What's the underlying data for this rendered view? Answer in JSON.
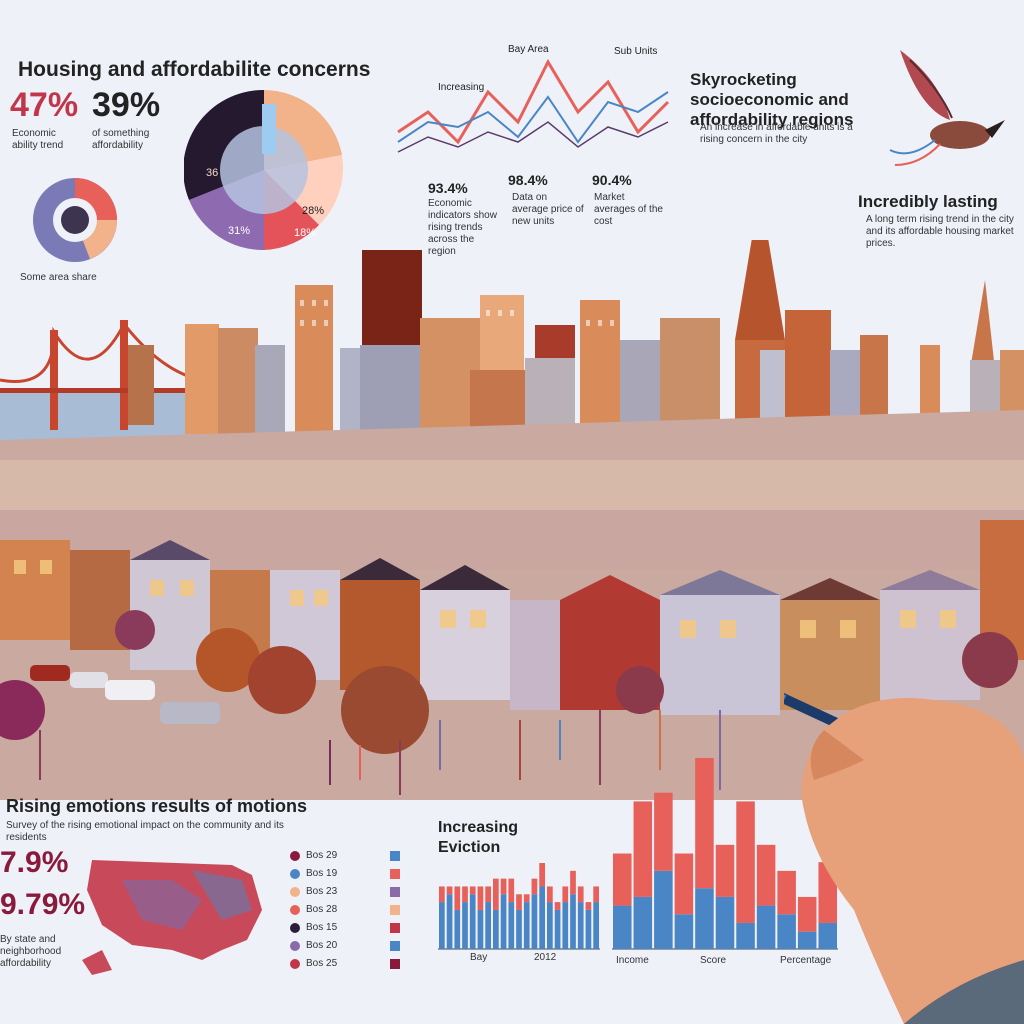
{
  "title": "Housing and affordabilite concerns",
  "stats_left": {
    "pct_a": "47%",
    "pct_b": "39%",
    "pct_a_note": "Economic ability trend",
    "pct_b_note": "of something affordability"
  },
  "donut_note": "Some area share",
  "pie_labels": [
    "36",
    "28%",
    "31%",
    "18%"
  ],
  "line_chart": {
    "title_left": "Increasing",
    "title_right": "Bay Area",
    "title_far": "Sub Units",
    "values_a": [
      "93.4%",
      "98.4%",
      "90.4%"
    ],
    "notes_a": "Economic indicators show rising trends across the region",
    "notes_b": "Data on average price of new units",
    "notes_c": "Market averages of the cost"
  },
  "right_block": {
    "title": "Skyrocketing socioeconomic and affordability regions",
    "note": "An increase in affordable units is a rising concern in the city"
  },
  "right_block2": {
    "title": "Incredibly lasting",
    "note": "A long term rising trend in the city and its affordable housing market prices."
  },
  "bottom_left": {
    "title": "Rising emotions results of motions",
    "subtitle": "Survey of the rising emotional impact on the community and its residents",
    "pct_a": "7.9%",
    "pct_b": "9.79%",
    "note": "By state and neighborhood affordability"
  },
  "legend_items": [
    "Bos 29",
    "Bos 19",
    "Bos 23",
    "Bos 28",
    "Bos 15",
    "Bos 20",
    "Bos 25"
  ],
  "bottom_charts": {
    "title": "Increasing Eviction",
    "axis_left": [
      "Bay",
      "2012"
    ],
    "axis_right": [
      "Income",
      "Score",
      "Percentage"
    ]
  },
  "colors": {
    "accent_red": "#e8605a",
    "accent_blue": "#4a86c5",
    "purple": "#8a6aa8",
    "dark": "#2a1f36",
    "peach": "#f2b28a"
  },
  "bar_chart_left": {
    "type": "bar",
    "values_blue": [
      6,
      7,
      5,
      6,
      7,
      5,
      6,
      5,
      7,
      6,
      5,
      6,
      7,
      8,
      6,
      5,
      6,
      7,
      6,
      5,
      6
    ],
    "values_red": [
      2,
      1,
      3,
      2,
      1,
      3,
      2,
      4,
      2,
      3,
      2,
      1,
      2,
      3,
      2,
      1,
      2,
      3,
      2,
      1,
      2
    ]
  },
  "bar_chart_right": {
    "type": "bar",
    "values_blue": [
      5,
      6,
      9,
      4,
      7,
      6,
      3,
      5,
      4,
      2,
      3
    ],
    "values_red": [
      6,
      11,
      9,
      7,
      15,
      6,
      14,
      7,
      5,
      4,
      7
    ]
  }
}
